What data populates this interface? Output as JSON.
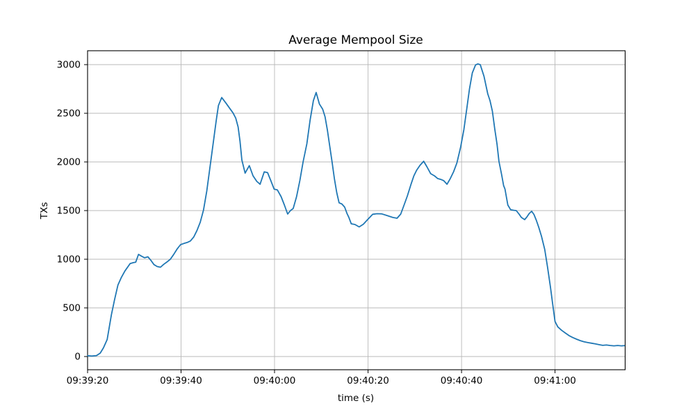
{
  "chart_data": {
    "type": "line",
    "title": "Average Mempool Size",
    "xlabel": "time (s)",
    "ylabel": "TXs",
    "grid": true,
    "legend": "none",
    "line_color": "#1f77b4",
    "background_color": "#ffffff",
    "grid_color": "#b8b8b8",
    "x_tick_labels": [
      "09:39:20",
      "09:39:40",
      "09:40:00",
      "09:40:20",
      "09:40:40",
      "09:41:00"
    ],
    "x_tick_seconds": [
      0,
      20,
      40,
      60,
      80,
      100
    ],
    "y_ticks": [
      0,
      500,
      1000,
      1500,
      2000,
      2500,
      3000
    ],
    "xlim_seconds": [
      0,
      115
    ],
    "ylim": [
      -136,
      3143
    ],
    "x_start_time": "09:39:20",
    "x_end_time": "09:41:15",
    "series": [
      {
        "name": "average-mempool-size",
        "units": "TXs",
        "x_units": "seconds after 09:39:20",
        "points": [
          [
            0,
            8
          ],
          [
            0.9,
            5
          ],
          [
            1.9,
            10
          ],
          [
            2.7,
            35
          ],
          [
            3.4,
            90
          ],
          [
            4.2,
            175
          ],
          [
            5.1,
            430
          ],
          [
            5.8,
            590
          ],
          [
            6.5,
            735
          ],
          [
            7.2,
            810
          ],
          [
            8,
            880
          ],
          [
            9.1,
            955
          ],
          [
            9.8,
            965
          ],
          [
            10.3,
            970
          ],
          [
            10.9,
            1050
          ],
          [
            11.6,
            1030
          ],
          [
            12.2,
            1015
          ],
          [
            12.9,
            1025
          ],
          [
            13.6,
            985
          ],
          [
            14.2,
            945
          ],
          [
            14.9,
            925
          ],
          [
            15.6,
            918
          ],
          [
            16.3,
            948
          ],
          [
            17,
            972
          ],
          [
            17.7,
            1000
          ],
          [
            18.4,
            1048
          ],
          [
            19.2,
            1108
          ],
          [
            19.9,
            1150
          ],
          [
            20.6,
            1162
          ],
          [
            21.3,
            1172
          ],
          [
            22,
            1188
          ],
          [
            22.7,
            1228
          ],
          [
            23.4,
            1295
          ],
          [
            24.1,
            1380
          ],
          [
            24.8,
            1505
          ],
          [
            25.5,
            1700
          ],
          [
            26.2,
            1950
          ],
          [
            26.9,
            2200
          ],
          [
            27.5,
            2420
          ],
          [
            28,
            2580
          ],
          [
            28.7,
            2662
          ],
          [
            29.6,
            2605
          ],
          [
            30.5,
            2545
          ],
          [
            31.1,
            2505
          ],
          [
            31.7,
            2450
          ],
          [
            32.2,
            2360
          ],
          [
            32.6,
            2215
          ],
          [
            33,
            2020
          ],
          [
            33.7,
            1885
          ],
          [
            34.6,
            1962
          ],
          [
            35.4,
            1857
          ],
          [
            36.2,
            1800
          ],
          [
            36.9,
            1771
          ],
          [
            37.8,
            1898
          ],
          [
            38.5,
            1890
          ],
          [
            39.2,
            1807
          ],
          [
            39.9,
            1721
          ],
          [
            40.6,
            1712
          ],
          [
            41.4,
            1643
          ],
          [
            42.1,
            1557
          ],
          [
            42.8,
            1464
          ],
          [
            43.4,
            1500
          ],
          [
            44,
            1522
          ],
          [
            44.7,
            1643
          ],
          [
            45.4,
            1807
          ],
          [
            46.1,
            2000
          ],
          [
            46.9,
            2186
          ],
          [
            47.6,
            2430
          ],
          [
            48.3,
            2630
          ],
          [
            48.9,
            2714
          ],
          [
            49.6,
            2595
          ],
          [
            50.3,
            2542
          ],
          [
            50.8,
            2464
          ],
          [
            51.3,
            2330
          ],
          [
            51.8,
            2164
          ],
          [
            52.3,
            2000
          ],
          [
            52.8,
            1830
          ],
          [
            53.3,
            1686
          ],
          [
            53.8,
            1580
          ],
          [
            54.4,
            1568
          ],
          [
            55,
            1536
          ],
          [
            55.5,
            1470
          ],
          [
            55.9,
            1429
          ],
          [
            56.4,
            1364
          ],
          [
            57.2,
            1357
          ],
          [
            58.1,
            1332
          ],
          [
            59,
            1360
          ],
          [
            59.9,
            1407
          ],
          [
            61,
            1462
          ],
          [
            61.9,
            1468
          ],
          [
            62.9,
            1466
          ],
          [
            64,
            1450
          ],
          [
            65.3,
            1429
          ],
          [
            66.2,
            1421
          ],
          [
            67,
            1464
          ],
          [
            67.7,
            1557
          ],
          [
            68.4,
            1650
          ],
          [
            69.2,
            1771
          ],
          [
            69.8,
            1857
          ],
          [
            70.4,
            1915
          ],
          [
            71.1,
            1964
          ],
          [
            71.9,
            2007
          ],
          [
            72.6,
            1950
          ],
          [
            73.4,
            1879
          ],
          [
            74.2,
            1857
          ],
          [
            74.9,
            1829
          ],
          [
            75.6,
            1820
          ],
          [
            76.2,
            1807
          ],
          [
            76.9,
            1771
          ],
          [
            77.6,
            1829
          ],
          [
            78.3,
            1900
          ],
          [
            79,
            1990
          ],
          [
            79.8,
            2150
          ],
          [
            80.5,
            2330
          ],
          [
            81.1,
            2540
          ],
          [
            81.7,
            2750
          ],
          [
            82.3,
            2915
          ],
          [
            83,
            2998
          ],
          [
            83.5,
            3007
          ],
          [
            84,
            3000
          ],
          [
            84.8,
            2880
          ],
          [
            85.6,
            2700
          ],
          [
            86.1,
            2629
          ],
          [
            86.6,
            2520
          ],
          [
            87.1,
            2343
          ],
          [
            87.6,
            2179
          ],
          [
            88,
            2007
          ],
          [
            88.6,
            1864
          ],
          [
            89,
            1757
          ],
          [
            89.3,
            1721
          ],
          [
            89.9,
            1557
          ],
          [
            90.5,
            1509
          ],
          [
            91.2,
            1503
          ],
          [
            91.7,
            1500
          ],
          [
            92.3,
            1464
          ],
          [
            92.8,
            1429
          ],
          [
            93.5,
            1407
          ],
          [
            94,
            1436
          ],
          [
            94.5,
            1471
          ],
          [
            95,
            1493
          ],
          [
            95.5,
            1460
          ],
          [
            96,
            1400
          ],
          [
            96.5,
            1330
          ],
          [
            97.1,
            1236
          ],
          [
            97.8,
            1100
          ],
          [
            98.4,
            920
          ],
          [
            99,
            720
          ],
          [
            99.5,
            540
          ],
          [
            100,
            360
          ],
          [
            100.6,
            305
          ],
          [
            101.4,
            270
          ],
          [
            102.2,
            242
          ],
          [
            103,
            215
          ],
          [
            103.8,
            195
          ],
          [
            104.6,
            178
          ],
          [
            105.4,
            163
          ],
          [
            106.2,
            152
          ],
          [
            107,
            143
          ],
          [
            107.8,
            137
          ],
          [
            108.6,
            130
          ],
          [
            109.4,
            122
          ],
          [
            110.2,
            115
          ],
          [
            111,
            118
          ],
          [
            111.8,
            113
          ],
          [
            112.6,
            110
          ],
          [
            113.4,
            113
          ],
          [
            114.2,
            110
          ],
          [
            114.8,
            112
          ]
        ]
      }
    ]
  }
}
